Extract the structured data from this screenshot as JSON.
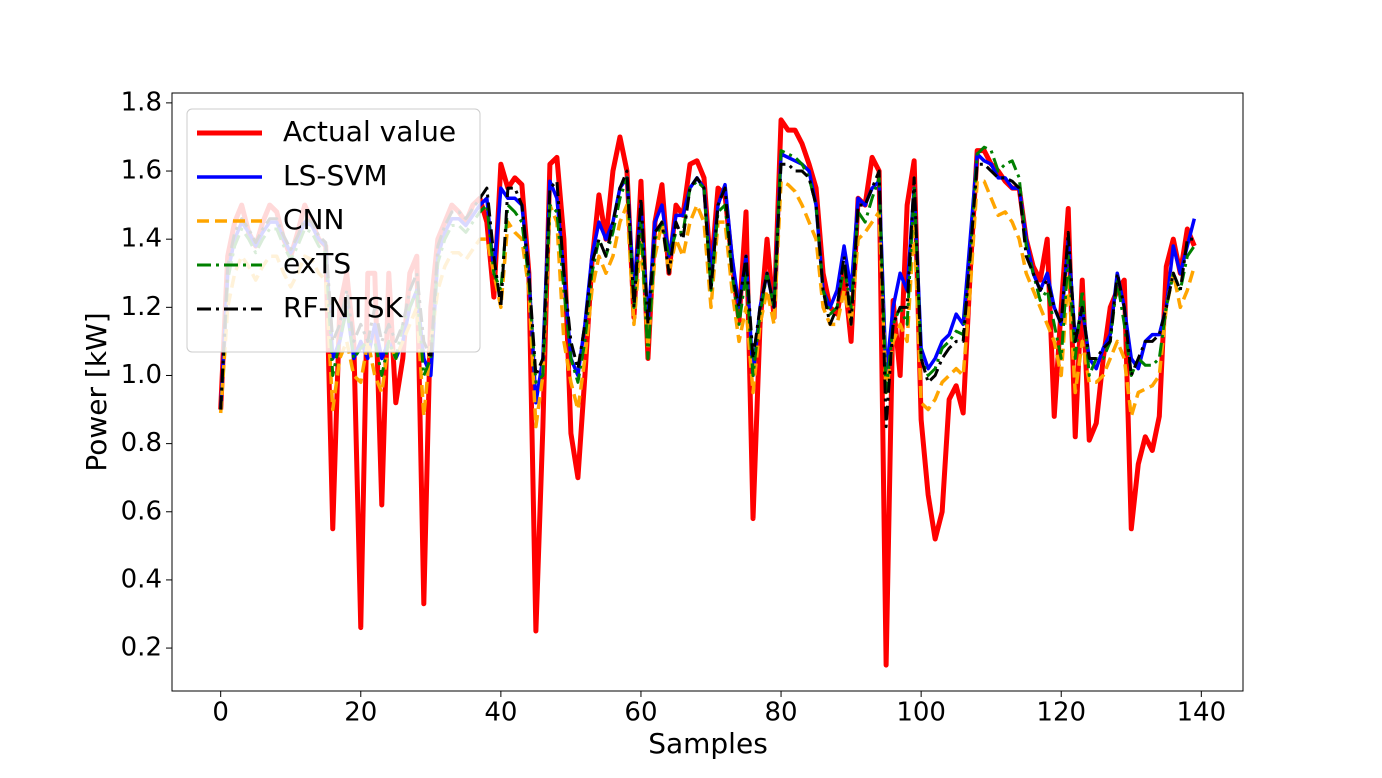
{
  "chart_data": {
    "type": "line",
    "xlabel": "Samples",
    "ylabel": "Power [kW]",
    "xlim": [
      -6.95,
      145.95
    ],
    "ylim": [
      0.074,
      1.829
    ],
    "xticks": [
      0,
      20,
      40,
      60,
      80,
      100,
      120,
      140
    ],
    "yticks": [
      0.2,
      0.4,
      0.6,
      0.8,
      {
        "value": 1,
        "label": "1.0"
      },
      1.2,
      1.4,
      1.6,
      1.8
    ],
    "grid": false,
    "legend": "upper left",
    "x": [
      0,
      1,
      2,
      3,
      4,
      5,
      6,
      7,
      8,
      9,
      10,
      11,
      12,
      13,
      14,
      15,
      16,
      17,
      18,
      19,
      20,
      21,
      22,
      23,
      24,
      25,
      26,
      27,
      28,
      29,
      30,
      31,
      32,
      33,
      34,
      35,
      36,
      37,
      38,
      39,
      40,
      41,
      42,
      43,
      44,
      45,
      46,
      47,
      48,
      49,
      50,
      51,
      52,
      53,
      54,
      55,
      56,
      57,
      58,
      59,
      60,
      61,
      62,
      63,
      64,
      65,
      66,
      67,
      68,
      69,
      70,
      71,
      72,
      73,
      74,
      75,
      76,
      77,
      78,
      79,
      80,
      81,
      82,
      83,
      84,
      85,
      86,
      87,
      88,
      89,
      90,
      91,
      92,
      93,
      94,
      95,
      96,
      97,
      98,
      99,
      100,
      101,
      102,
      103,
      104,
      105,
      106,
      107,
      108,
      109,
      110,
      111,
      112,
      113,
      114,
      115,
      116,
      117,
      118,
      119,
      120,
      121,
      122,
      123,
      124,
      125,
      126,
      127,
      128,
      129,
      130,
      131,
      132,
      133,
      134,
      135,
      136,
      137,
      138,
      139
    ],
    "series": [
      {
        "name": "Actual value",
        "color": "#ff0000",
        "linestyle": "solid",
        "linewidth": 5,
        "values": [
          0.9,
          1.35,
          1.45,
          1.5,
          1.42,
          1.38,
          1.45,
          1.5,
          1.48,
          1.4,
          1.35,
          1.42,
          1.5,
          1.45,
          1.4,
          1.38,
          0.55,
          1.2,
          1.3,
          1.1,
          0.26,
          1.3,
          1.3,
          0.62,
          1.3,
          0.92,
          1.05,
          1.3,
          1.35,
          0.33,
          1.2,
          1.4,
          1.45,
          1.5,
          1.48,
          1.45,
          1.5,
          1.52,
          1.45,
          1.23,
          1.62,
          1.55,
          1.58,
          1.56,
          1.3,
          0.25,
          0.85,
          1.62,
          1.64,
          1.4,
          0.83,
          0.7,
          1.0,
          1.33,
          1.53,
          1.4,
          1.6,
          1.7,
          1.6,
          1.17,
          1.57,
          1.05,
          1.45,
          1.56,
          1.3,
          1.5,
          1.47,
          1.62,
          1.63,
          1.58,
          1.3,
          1.55,
          1.53,
          1.33,
          1.16,
          1.48,
          0.58,
          1.15,
          1.4,
          1.17,
          1.75,
          1.72,
          1.72,
          1.68,
          1.62,
          1.55,
          1.3,
          1.2,
          1.18,
          1.3,
          1.1,
          1.52,
          1.5,
          1.64,
          1.6,
          0.15,
          1.22,
          1.0,
          1.5,
          1.63,
          0.87,
          0.65,
          0.52,
          0.6,
          0.93,
          0.97,
          0.89,
          1.3,
          1.66,
          1.66,
          1.62,
          1.6,
          1.57,
          1.55,
          1.55,
          1.4,
          1.32,
          1.28,
          1.4,
          0.88,
          1.2,
          1.49,
          0.82,
          1.28,
          0.81,
          0.86,
          1.05,
          1.2,
          1.25,
          1.28,
          0.55,
          0.74,
          0.82,
          0.78,
          0.88,
          1.32,
          1.4,
          1.3,
          1.43,
          1.38
        ]
      },
      {
        "name": "LS-SVM",
        "color": "#0000ff",
        "linestyle": "solid",
        "linewidth": 3.5,
        "values": [
          0.9,
          1.3,
          1.4,
          1.45,
          1.42,
          1.38,
          1.42,
          1.45,
          1.45,
          1.4,
          1.36,
          1.4,
          1.45,
          1.44,
          1.4,
          1.38,
          1.05,
          1.1,
          1.2,
          1.05,
          1.1,
          1.05,
          1.15,
          1.05,
          1.1,
          1.05,
          1.1,
          1.2,
          1.25,
          1.05,
          1.0,
          1.35,
          1.42,
          1.46,
          1.46,
          1.44,
          1.47,
          1.5,
          1.52,
          1.3,
          1.55,
          1.52,
          1.52,
          1.5,
          1.3,
          0.92,
          1.05,
          1.57,
          1.52,
          1.3,
          1.05,
          1.0,
          1.15,
          1.35,
          1.45,
          1.4,
          1.45,
          1.55,
          1.58,
          1.25,
          1.5,
          1.15,
          1.45,
          1.5,
          1.35,
          1.47,
          1.47,
          1.55,
          1.58,
          1.55,
          1.3,
          1.5,
          1.56,
          1.35,
          1.2,
          1.35,
          1.0,
          1.2,
          1.3,
          1.2,
          1.65,
          1.64,
          1.63,
          1.62,
          1.6,
          1.5,
          1.25,
          1.2,
          1.25,
          1.38,
          1.25,
          1.52,
          1.5,
          1.55,
          1.57,
          1.0,
          1.2,
          1.3,
          1.25,
          1.55,
          1.08,
          1.02,
          1.05,
          1.1,
          1.12,
          1.18,
          1.15,
          1.4,
          1.65,
          1.63,
          1.62,
          1.58,
          1.58,
          1.55,
          1.55,
          1.4,
          1.3,
          1.25,
          1.3,
          1.2,
          1.15,
          1.4,
          1.1,
          1.2,
          1.05,
          1.02,
          1.08,
          1.12,
          1.3,
          1.2,
          1.05,
          1.02,
          1.1,
          1.12,
          1.12,
          1.2,
          1.38,
          1.3,
          1.38,
          1.46
        ]
      },
      {
        "name": "CNN",
        "color": "#ffa500",
        "linestyle": "dashed",
        "linewidth": 3.5,
        "values": [
          0.89,
          1.2,
          1.3,
          1.35,
          1.32,
          1.28,
          1.32,
          1.35,
          1.35,
          1.3,
          1.26,
          1.3,
          1.35,
          1.34,
          1.3,
          1.28,
          0.9,
          1.05,
          1.1,
          1.0,
          0.98,
          1.1,
          1.0,
          0.95,
          1.1,
          1.05,
          1.1,
          1.15,
          1.2,
          0.88,
          1.1,
          1.25,
          1.32,
          1.36,
          1.36,
          1.34,
          1.37,
          1.4,
          1.4,
          1.3,
          1.2,
          1.45,
          1.42,
          1.4,
          1.25,
          0.85,
          1.0,
          1.5,
          1.45,
          1.1,
          0.98,
          0.9,
          1.05,
          1.25,
          1.35,
          1.3,
          1.35,
          1.45,
          1.5,
          1.15,
          1.4,
          1.08,
          1.35,
          1.45,
          1.3,
          1.4,
          1.35,
          1.45,
          1.5,
          1.45,
          1.2,
          1.45,
          1.45,
          1.25,
          1.1,
          1.2,
          0.95,
          1.15,
          1.25,
          1.15,
          1.57,
          1.56,
          1.54,
          1.5,
          1.45,
          1.4,
          1.2,
          1.15,
          1.15,
          1.25,
          1.15,
          1.4,
          1.42,
          1.45,
          1.48,
          0.95,
          1.1,
          1.15,
          1.1,
          1.45,
          0.92,
          0.9,
          0.93,
          0.98,
          1.0,
          1.02,
          1.0,
          1.25,
          1.57,
          1.57,
          1.52,
          1.47,
          1.48,
          1.45,
          1.4,
          1.3,
          1.25,
          1.2,
          1.15,
          1.1,
          1.0,
          1.3,
          0.95,
          1.1,
          0.98,
          0.98,
          1.0,
          1.05,
          1.1,
          1.05,
          0.88,
          0.95,
          0.96,
          0.97,
          1.0,
          1.2,
          1.3,
          1.2,
          1.25,
          1.32
        ]
      },
      {
        "name": "exTS",
        "color": "#008000",
        "linestyle": "dashdot",
        "linewidth": 3,
        "values": [
          0.9,
          1.28,
          1.38,
          1.43,
          1.4,
          1.36,
          1.4,
          1.43,
          1.43,
          1.38,
          1.34,
          1.38,
          1.43,
          1.42,
          1.38,
          1.36,
          1.0,
          1.1,
          1.2,
          1.05,
          1.08,
          1.1,
          1.1,
          1.0,
          1.1,
          1.05,
          1.15,
          1.2,
          1.25,
          1.0,
          1.05,
          1.33,
          1.4,
          1.44,
          1.44,
          1.42,
          1.45,
          1.48,
          1.5,
          1.3,
          1.25,
          1.5,
          1.48,
          1.45,
          1.28,
          0.98,
          1.0,
          1.5,
          1.48,
          1.25,
          1.05,
          0.98,
          1.1,
          1.3,
          1.4,
          1.35,
          1.42,
          1.52,
          1.58,
          1.2,
          1.45,
          1.05,
          1.4,
          1.45,
          1.35,
          1.42,
          1.42,
          1.55,
          1.57,
          1.55,
          1.25,
          1.48,
          1.5,
          1.3,
          1.15,
          1.3,
          1.0,
          1.18,
          1.3,
          1.2,
          1.66,
          1.65,
          1.64,
          1.62,
          1.58,
          1.5,
          1.25,
          1.18,
          1.2,
          1.32,
          1.2,
          1.48,
          1.45,
          1.52,
          1.58,
          0.95,
          1.15,
          1.2,
          1.15,
          1.55,
          1.05,
          1.0,
          1.02,
          1.08,
          1.1,
          1.13,
          1.12,
          1.35,
          1.65,
          1.67,
          1.66,
          1.6,
          1.62,
          1.63,
          1.58,
          1.38,
          1.3,
          1.22,
          1.25,
          1.15,
          1.05,
          1.35,
          1.05,
          1.25,
          1.0,
          1.05,
          1.05,
          1.1,
          1.28,
          1.15,
          1.0,
          1.05,
          1.03,
          1.03,
          1.05,
          1.2,
          1.3,
          1.25,
          1.35,
          1.38
        ]
      },
      {
        "name": "RF-NTSK",
        "color": "#000000",
        "linestyle": "dashdot",
        "linewidth": 3,
        "values": [
          0.9,
          1.32,
          1.42,
          1.46,
          1.43,
          1.39,
          1.43,
          1.46,
          1.46,
          1.41,
          1.37,
          1.41,
          1.46,
          1.45,
          1.41,
          1.39,
          1.1,
          1.15,
          1.25,
          1.1,
          1.15,
          1.1,
          1.2,
          1.1,
          1.15,
          1.1,
          1.15,
          1.25,
          1.3,
          1.1,
          1.05,
          1.38,
          1.44,
          1.48,
          1.48,
          1.46,
          1.49,
          1.52,
          1.55,
          1.35,
          1.2,
          1.55,
          1.55,
          1.5,
          1.3,
          1.0,
          1.05,
          1.55,
          1.57,
          1.3,
          1.1,
          1.02,
          1.15,
          1.33,
          1.4,
          1.35,
          1.45,
          1.55,
          1.6,
          1.2,
          1.52,
          1.15,
          1.42,
          1.45,
          1.3,
          1.45,
          1.4,
          1.55,
          1.58,
          1.55,
          1.25,
          1.5,
          1.55,
          1.3,
          1.2,
          1.35,
          1.05,
          1.2,
          1.3,
          1.2,
          1.62,
          1.62,
          1.6,
          1.6,
          1.58,
          1.5,
          1.25,
          1.15,
          1.2,
          1.35,
          1.15,
          1.5,
          1.5,
          1.55,
          1.6,
          0.85,
          1.15,
          1.2,
          1.2,
          1.58,
          1.05,
          0.98,
          1.0,
          1.05,
          1.08,
          1.1,
          1.1,
          1.35,
          1.62,
          1.62,
          1.6,
          1.58,
          1.58,
          1.57,
          1.55,
          1.35,
          1.3,
          1.25,
          1.28,
          1.2,
          1.15,
          1.42,
          1.1,
          1.2,
          1.05,
          1.05,
          1.08,
          1.1,
          1.3,
          1.2,
          1.0,
          1.05,
          1.1,
          1.1,
          1.12,
          1.2,
          1.3,
          1.25,
          1.4,
          1.4
        ]
      }
    ]
  }
}
